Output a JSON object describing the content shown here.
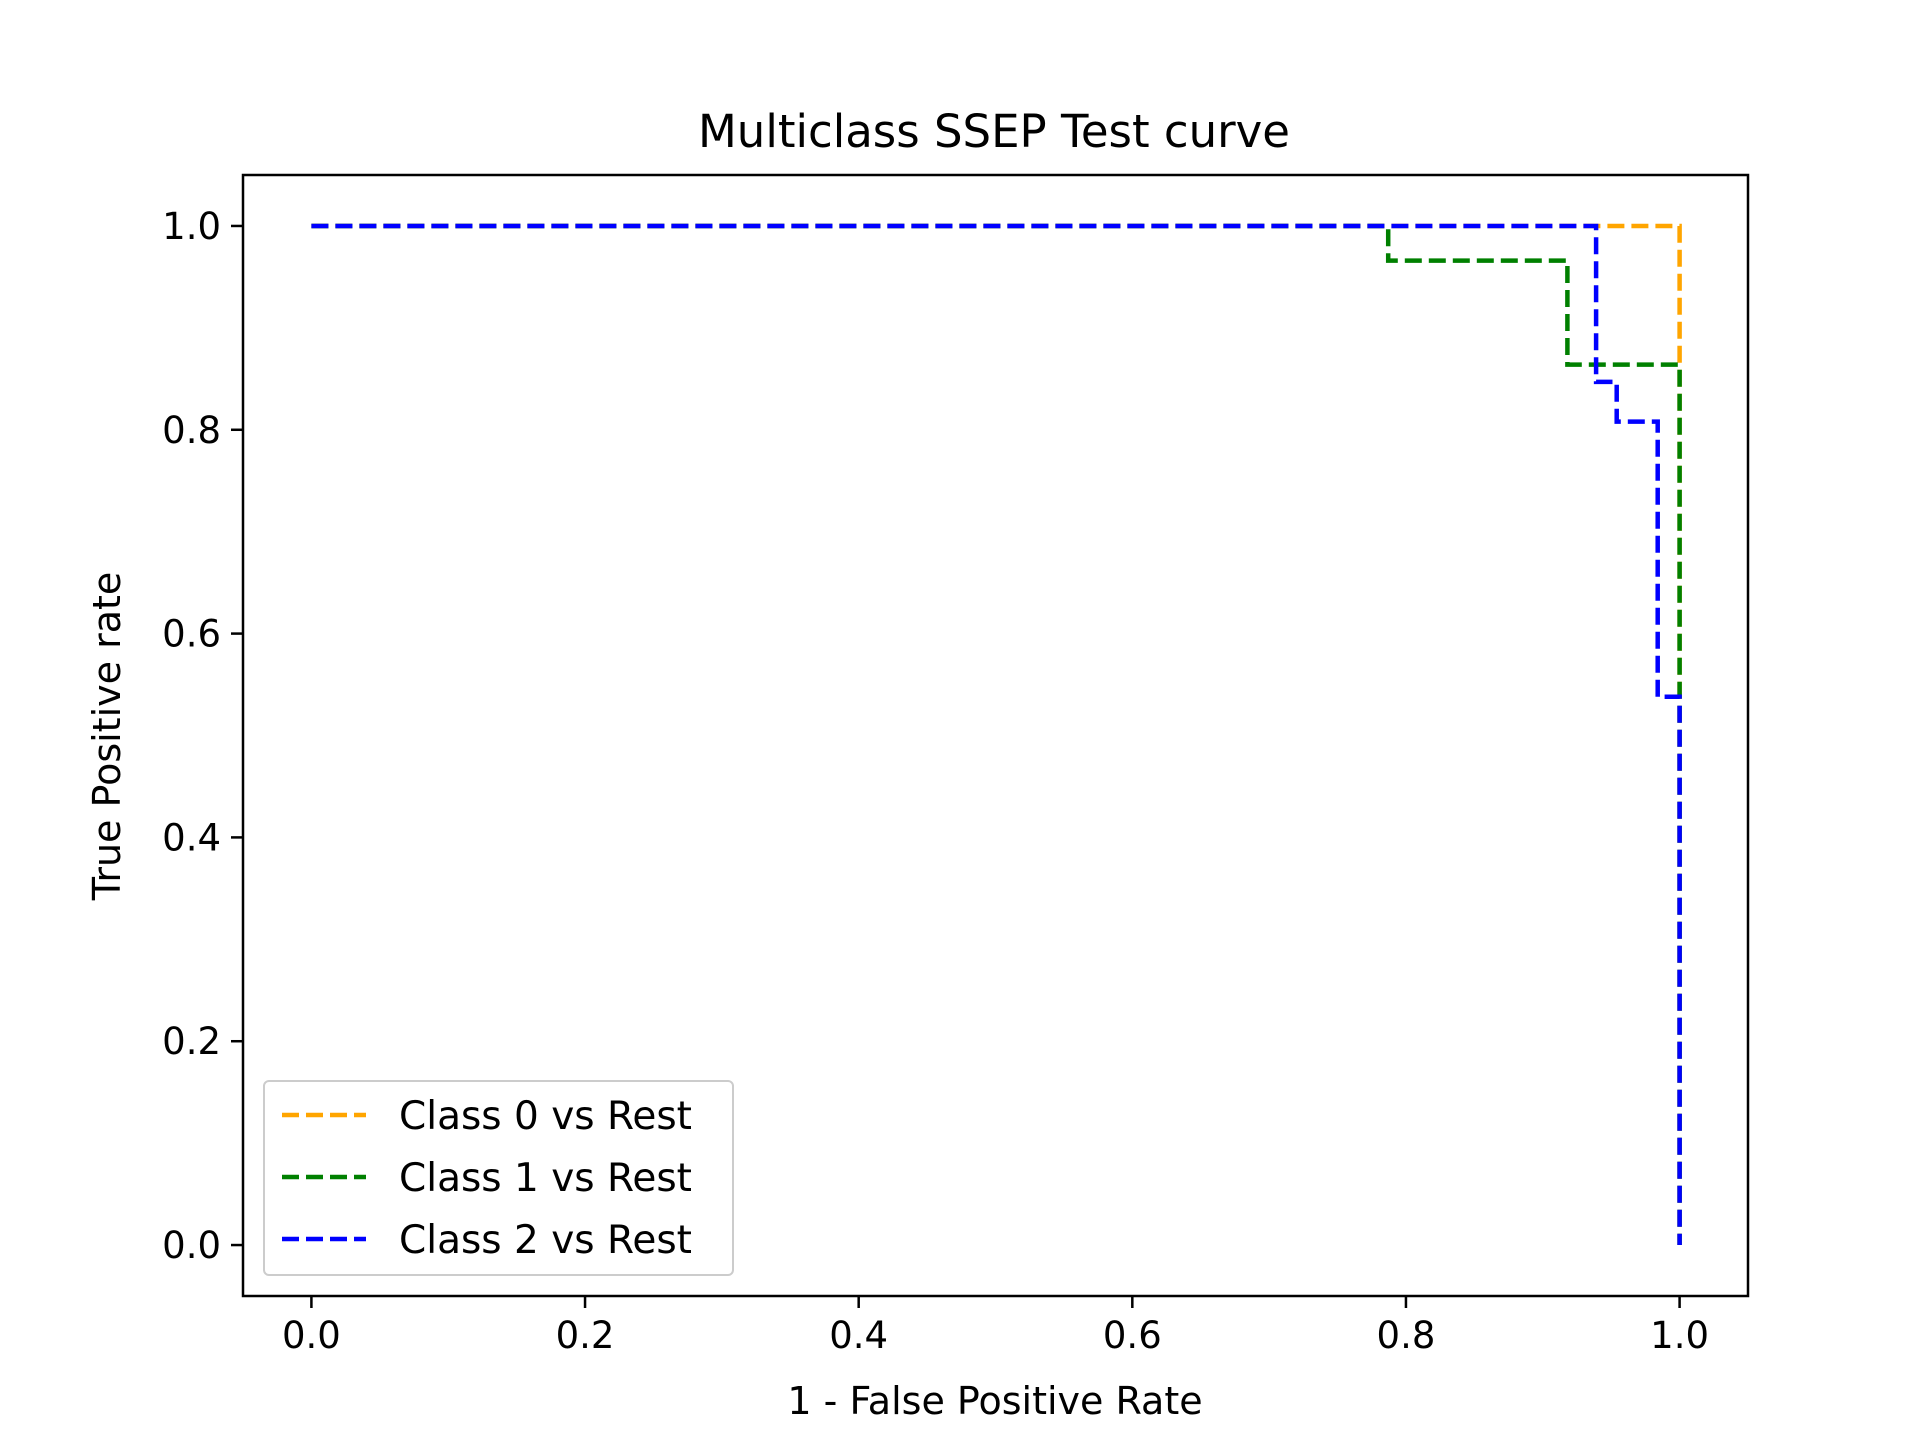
{
  "chart_data": {
    "type": "line",
    "title": "Multiclass SSEP Test curve",
    "xlabel": "1 - False Positive Rate",
    "ylabel": "True Positive rate",
    "xlim": [
      -0.05,
      1.05
    ],
    "ylim": [
      -0.05,
      1.05
    ],
    "x_ticks": [
      0.0,
      0.2,
      0.4,
      0.6,
      0.8,
      1.0
    ],
    "y_ticks": [
      0.0,
      0.2,
      0.4,
      0.6,
      0.8,
      1.0
    ],
    "tick_labels": [
      "0.0",
      "0.2",
      "0.4",
      "0.6",
      "0.8",
      "1.0"
    ],
    "grid": false,
    "legend_position": "lower-left",
    "line_style": "dashed",
    "series": [
      {
        "name": "Class 0 vs Rest",
        "color": "#ffa500",
        "x": [
          0.0,
          1.0,
          1.0,
          1.0
        ],
        "y": [
          1.0,
          1.0,
          0.866,
          0.0
        ]
      },
      {
        "name": "Class 1 vs Rest",
        "color": "#008000",
        "x": [
          0.0,
          0.787,
          0.787,
          0.918,
          0.918,
          1.0,
          1.0,
          1.0
        ],
        "y": [
          1.0,
          1.0,
          0.966,
          0.966,
          0.864,
          0.864,
          0.542,
          0.0
        ]
      },
      {
        "name": "Class 2 vs Rest",
        "color": "#0000ff",
        "x": [
          0.0,
          0.939,
          0.939,
          0.954,
          0.954,
          0.984,
          0.984,
          1.0,
          1.0
        ],
        "y": [
          1.0,
          1.0,
          0.847,
          0.847,
          0.808,
          0.808,
          0.538,
          0.538,
          0.0
        ]
      }
    ]
  }
}
